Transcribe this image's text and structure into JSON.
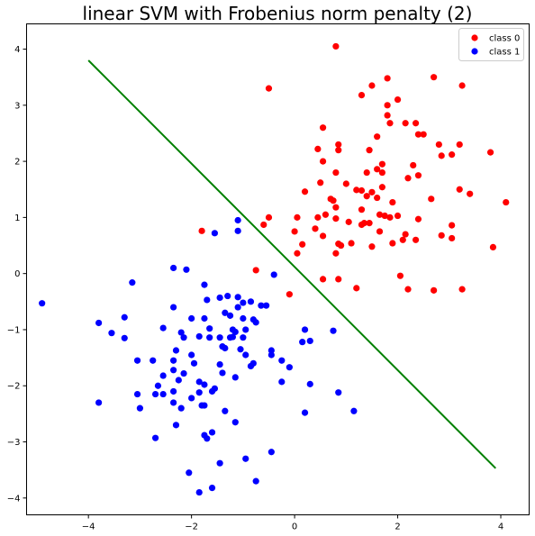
{
  "chart_data": {
    "type": "scatter",
    "title": "linear SVM with Frobenius norm penalty (2)",
    "xlabel": "",
    "ylabel": "",
    "xlim": [
      -5.2,
      4.55
    ],
    "ylim": [
      -4.3,
      4.45
    ],
    "x_ticks": [
      -4,
      -2,
      0,
      2,
      4
    ],
    "y_ticks": [
      -4,
      -3,
      -2,
      -1,
      0,
      1,
      2,
      3,
      4
    ],
    "grid": false,
    "legend_position": "top-right",
    "series": [
      {
        "name": "class 0",
        "color": "#ff0000",
        "points": [
          [
            0.8,
            4.05
          ],
          [
            -0.5,
            3.3
          ],
          [
            1.8,
            3.48
          ],
          [
            2.7,
            3.5
          ],
          [
            1.5,
            3.35
          ],
          [
            3.25,
            3.35
          ],
          [
            1.3,
            3.18
          ],
          [
            2.0,
            3.1
          ],
          [
            1.8,
            3.0
          ],
          [
            1.8,
            2.82
          ],
          [
            2.35,
            2.68
          ],
          [
            2.15,
            2.68
          ],
          [
            1.85,
            2.68
          ],
          [
            0.55,
            2.6
          ],
          [
            2.4,
            2.48
          ],
          [
            2.5,
            2.48
          ],
          [
            1.6,
            2.44
          ],
          [
            0.85,
            2.3
          ],
          [
            2.8,
            2.3
          ],
          [
            3.2,
            2.3
          ],
          [
            0.45,
            2.22
          ],
          [
            0.85,
            2.2
          ],
          [
            1.45,
            2.2
          ],
          [
            2.85,
            2.1
          ],
          [
            3.05,
            2.12
          ],
          [
            3.8,
            2.16
          ],
          [
            0.55,
            2.0
          ],
          [
            1.7,
            1.95
          ],
          [
            2.3,
            1.93
          ],
          [
            1.6,
            1.86
          ],
          [
            1.7,
            1.8
          ],
          [
            0.8,
            1.8
          ],
          [
            1.4,
            1.8
          ],
          [
            2.2,
            1.7
          ],
          [
            2.4,
            1.75
          ],
          [
            0.5,
            1.62
          ],
          [
            1.0,
            1.6
          ],
          [
            1.7,
            1.54
          ],
          [
            1.2,
            1.49
          ],
          [
            1.3,
            1.48
          ],
          [
            1.5,
            1.45
          ],
          [
            0.2,
            1.46
          ],
          [
            3.2,
            1.5
          ],
          [
            3.4,
            1.42
          ],
          [
            1.4,
            1.38
          ],
          [
            0.7,
            1.33
          ],
          [
            2.65,
            1.33
          ],
          [
            0.75,
            1.3
          ],
          [
            1.6,
            1.35
          ],
          [
            1.9,
            1.27
          ],
          [
            4.1,
            1.27
          ],
          [
            1.3,
            1.14
          ],
          [
            0.8,
            1.18
          ],
          [
            0.6,
            1.05
          ],
          [
            1.65,
            1.05
          ],
          [
            1.75,
            1.03
          ],
          [
            2.0,
            1.03
          ],
          [
            0.45,
            1.0
          ],
          [
            1.85,
            1.0
          ],
          [
            2.4,
            0.97
          ],
          [
            0.05,
            1.0
          ],
          [
            -0.5,
            1.0
          ],
          [
            0.8,
            0.98
          ],
          [
            1.05,
            0.92
          ],
          [
            1.35,
            0.9
          ],
          [
            1.45,
            0.9
          ],
          [
            1.3,
            0.87
          ],
          [
            3.05,
            0.86
          ],
          [
            -0.6,
            0.87
          ],
          [
            0.4,
            0.8
          ],
          [
            1.65,
            0.75
          ],
          [
            0.0,
            0.75
          ],
          [
            -1.8,
            0.76
          ],
          [
            2.15,
            0.7
          ],
          [
            0.55,
            0.67
          ],
          [
            2.85,
            0.68
          ],
          [
            3.05,
            0.63
          ],
          [
            2.1,
            0.6
          ],
          [
            2.35,
            0.6
          ],
          [
            0.85,
            0.53
          ],
          [
            0.9,
            0.5
          ],
          [
            1.1,
            0.54
          ],
          [
            1.9,
            0.54
          ],
          [
            0.15,
            0.52
          ],
          [
            1.5,
            0.48
          ],
          [
            3.85,
            0.47
          ],
          [
            0.8,
            0.36
          ],
          [
            0.05,
            0.36
          ],
          [
            -0.75,
            0.06
          ],
          [
            2.05,
            -0.04
          ],
          [
            0.55,
            -0.1
          ],
          [
            0.85,
            -0.1
          ],
          [
            1.2,
            -0.26
          ],
          [
            2.2,
            -0.28
          ],
          [
            2.7,
            -0.3
          ],
          [
            3.25,
            -0.28
          ],
          [
            -0.1,
            -0.37
          ]
        ]
      },
      {
        "name": "class 1",
        "color": "#0000ff",
        "points": [
          [
            -1.1,
            0.95
          ],
          [
            -1.1,
            0.76
          ],
          [
            -1.55,
            0.72
          ],
          [
            -2.35,
            0.1
          ],
          [
            -2.1,
            0.07
          ],
          [
            -0.4,
            -0.02
          ],
          [
            -1.75,
            -0.2
          ],
          [
            -3.15,
            -0.16
          ],
          [
            -4.9,
            -0.53
          ],
          [
            -1.3,
            -0.4
          ],
          [
            -1.1,
            -0.42
          ],
          [
            -1.0,
            -0.52
          ],
          [
            -1.45,
            -0.43
          ],
          [
            -1.7,
            -0.47
          ],
          [
            -0.85,
            -0.5
          ],
          [
            -0.55,
            -0.57
          ],
          [
            -0.65,
            -0.57
          ],
          [
            -1.1,
            -0.6
          ],
          [
            -2.35,
            -0.6
          ],
          [
            -1.35,
            -0.7
          ],
          [
            -1.25,
            -0.75
          ],
          [
            -1.0,
            -0.8
          ],
          [
            -0.8,
            -0.82
          ],
          [
            -1.75,
            -0.8
          ],
          [
            -2.0,
            -0.8
          ],
          [
            -3.3,
            -0.78
          ],
          [
            -3.8,
            -0.88
          ],
          [
            -0.75,
            -0.87
          ],
          [
            -2.55,
            -0.97
          ],
          [
            -1.65,
            -0.98
          ],
          [
            -0.95,
            -1.0
          ],
          [
            -1.2,
            -1.0
          ],
          [
            -1.15,
            -1.04
          ],
          [
            -2.2,
            -1.05
          ],
          [
            -3.55,
            -1.06
          ],
          [
            0.2,
            -1.0
          ],
          [
            0.75,
            -1.02
          ],
          [
            -1.85,
            -1.12
          ],
          [
            -1.65,
            -1.14
          ],
          [
            -1.45,
            -1.14
          ],
          [
            -1.25,
            -1.14
          ],
          [
            -1.2,
            -1.13
          ],
          [
            -1.0,
            -1.14
          ],
          [
            -2.15,
            -1.14
          ],
          [
            -3.3,
            -1.15
          ],
          [
            0.15,
            -1.22
          ],
          [
            0.3,
            -1.2
          ],
          [
            -1.4,
            -1.3
          ],
          [
            -1.35,
            -1.33
          ],
          [
            -1.05,
            -1.35
          ],
          [
            -2.3,
            -1.37
          ],
          [
            -0.45,
            -1.37
          ],
          [
            -2.0,
            -1.45
          ],
          [
            -0.45,
            -1.45
          ],
          [
            -0.95,
            -1.45
          ],
          [
            -3.05,
            -1.55
          ],
          [
            -2.75,
            -1.55
          ],
          [
            -0.25,
            -1.55
          ],
          [
            -0.8,
            -1.6
          ],
          [
            -2.35,
            -1.55
          ],
          [
            -1.95,
            -1.6
          ],
          [
            -2.35,
            -1.72
          ],
          [
            -0.85,
            -1.65
          ],
          [
            -0.1,
            -1.67
          ],
          [
            -1.45,
            -1.62
          ],
          [
            -1.4,
            -1.77
          ],
          [
            -2.15,
            -1.78
          ],
          [
            -2.55,
            -1.82
          ],
          [
            -1.15,
            -1.85
          ],
          [
            -1.85,
            -1.93
          ],
          [
            -1.75,
            -1.98
          ],
          [
            -2.25,
            -1.9
          ],
          [
            -2.65,
            -2.0
          ],
          [
            -1.55,
            -2.05
          ],
          [
            -1.6,
            -2.1
          ],
          [
            -1.85,
            -2.12
          ],
          [
            -2.35,
            -2.1
          ],
          [
            -2.55,
            -2.15
          ],
          [
            -2.7,
            -2.15
          ],
          [
            -3.05,
            -2.15
          ],
          [
            -0.25,
            -1.93
          ],
          [
            0.3,
            -1.97
          ],
          [
            0.85,
            -2.12
          ],
          [
            -2.0,
            -2.22
          ],
          [
            -2.35,
            -2.3
          ],
          [
            -3.8,
            -2.3
          ],
          [
            -1.8,
            -2.35
          ],
          [
            -1.75,
            -2.35
          ],
          [
            -3.0,
            -2.4
          ],
          [
            -2.2,
            -2.4
          ],
          [
            -1.35,
            -2.45
          ],
          [
            0.2,
            -2.48
          ],
          [
            1.15,
            -2.45
          ],
          [
            -1.15,
            -2.65
          ],
          [
            -2.3,
            -2.7
          ],
          [
            -1.75,
            -2.88
          ],
          [
            -1.6,
            -2.83
          ],
          [
            -2.7,
            -2.93
          ],
          [
            -1.7,
            -2.94
          ],
          [
            -0.45,
            -3.18
          ],
          [
            -0.95,
            -3.3
          ],
          [
            -1.45,
            -3.38
          ],
          [
            -2.05,
            -3.55
          ],
          [
            -0.75,
            -3.7
          ],
          [
            -1.6,
            -3.82
          ],
          [
            -1.85,
            -3.9
          ]
        ]
      }
    ],
    "decision_line": {
      "color": "#008000",
      "from": [
        -4.0,
        3.8
      ],
      "to": [
        3.9,
        -3.47
      ]
    }
  }
}
